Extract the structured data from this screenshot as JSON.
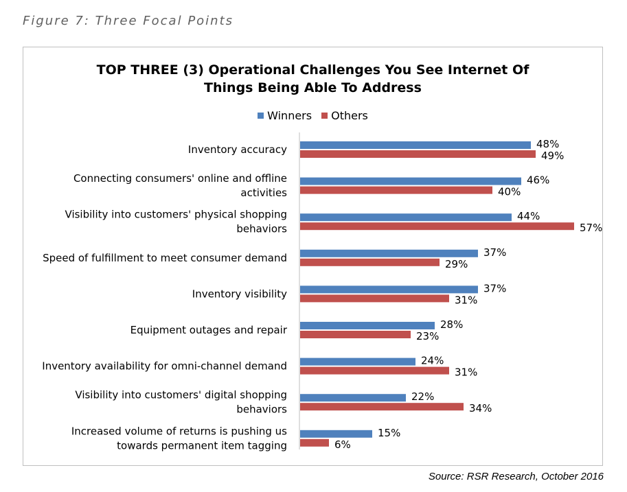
{
  "figure_caption": "Figure 7: Three Focal Points",
  "source": "Source: RSR Research, October 2016",
  "colors": {
    "winners": "#4f81bd",
    "others": "#c0504d",
    "frame": "#bfbfbf"
  },
  "chart_data": {
    "type": "bar",
    "orientation": "horizontal",
    "title_lines": [
      "TOP THREE (3) Operational Challenges You See Internet Of",
      "Things Being Able To Address"
    ],
    "legend_position": "top",
    "grid": false,
    "value_suffix": "%",
    "xlim": [
      0,
      57
    ],
    "categories": [
      [
        "Inventory accuracy"
      ],
      [
        "Connecting consumers' online and offline",
        "activities"
      ],
      [
        "Visibility into customers' physical shopping",
        "behaviors"
      ],
      [
        "Speed of fulfillment to meet consumer demand"
      ],
      [
        "Inventory visibility"
      ],
      [
        "Equipment outages and repair"
      ],
      [
        "Inventory availability for omni-channel demand"
      ],
      [
        "Visibility into customers' digital shopping",
        "behaviors"
      ],
      [
        "Increased volume of returns is pushing us",
        "towards permanent item tagging"
      ]
    ],
    "series": [
      {
        "name": "Winners",
        "values": [
          48,
          46,
          44,
          37,
          37,
          28,
          24,
          22,
          15
        ]
      },
      {
        "name": "Others",
        "values": [
          49,
          40,
          57,
          29,
          31,
          23,
          31,
          34,
          6
        ]
      }
    ]
  }
}
